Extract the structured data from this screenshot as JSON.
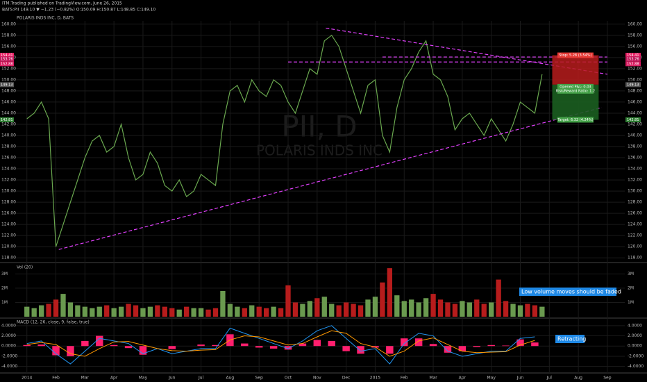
{
  "header": {
    "publisher": "ITM.Trading published on TradingView.com, June 26, 2015",
    "quote": "BATS:PII 149.10 ▼ −1.23 (−0.82%) O:150.09 H:150.87 L:148.85 C:149.10",
    "symbol": "POLARIS INDS INC, D, BATS",
    "watermark": "PII, D",
    "watermark_name": "POLARIS INDS INC"
  },
  "chart_data": [
    {
      "type": "line",
      "x": [
        0,
        0.25,
        0.5,
        0.75,
        1,
        1.25,
        1.5,
        1.75,
        2,
        2.25,
        2.5,
        2.75,
        3,
        3.25,
        3.5,
        3.75,
        4,
        4.25,
        4.5,
        4.75,
        5,
        5.25,
        5.5,
        5.75,
        6,
        6.25,
        6.5,
        6.75,
        7,
        7.25,
        7.5,
        7.75,
        8,
        8.25,
        8.5,
        8.75,
        9,
        9.25,
        9.5,
        9.75,
        10,
        10.25,
        10.5,
        10.75,
        11,
        11.25,
        11.5,
        11.75,
        12,
        12.25,
        12.5,
        12.75,
        13,
        13.25,
        13.5,
        13.75,
        14,
        14.25,
        14.5,
        14.75,
        15,
        15.25,
        15.5,
        15.75,
        16,
        16.25,
        16.5,
        16.75,
        17,
        17.25,
        17.5,
        17.75
      ],
      "series": [
        {
          "color": "#6aa84f",
          "values": [
            143,
            144,
            146,
            143,
            120,
            124,
            128,
            132,
            136,
            139,
            140,
            137,
            138,
            142,
            136,
            132,
            133,
            137,
            135,
            131,
            130,
            132,
            129,
            130,
            133,
            132,
            131,
            142,
            148,
            149,
            146,
            150,
            148,
            147,
            150,
            149,
            146,
            144,
            148,
            152,
            151,
            157,
            158,
            156,
            152,
            148,
            144,
            149,
            150,
            140,
            137,
            145,
            150,
            152,
            155,
            157,
            151,
            150,
            147,
            141,
            143,
            144,
            142,
            140,
            143,
            141,
            139,
            142,
            146,
            145,
            144,
            151
          ]
        }
      ],
      "xlim": [
        -0.4,
        20.6
      ],
      "xticks": [
        {
          "value": 0,
          "label": "2014"
        },
        {
          "value": 1,
          "label": "Feb"
        },
        {
          "value": 2,
          "label": "Mar"
        },
        {
          "value": 3,
          "label": "Apr"
        },
        {
          "value": 4,
          "label": "May"
        },
        {
          "value": 5,
          "label": "Jun"
        },
        {
          "value": 6,
          "label": "Jul"
        },
        {
          "value": 7,
          "label": "Aug"
        },
        {
          "value": 8,
          "label": "Sep"
        },
        {
          "value": 9,
          "label": "Oct"
        },
        {
          "value": 10,
          "label": "Nov"
        },
        {
          "value": 11,
          "label": "Dec"
        },
        {
          "value": 12,
          "label": "2015"
        },
        {
          "value": 13,
          "label": "Feb"
        },
        {
          "value": 14,
          "label": "Mar"
        },
        {
          "value": 15,
          "label": "Apr"
        },
        {
          "value": 16,
          "label": "May"
        },
        {
          "value": 17,
          "label": "Jun"
        },
        {
          "value": 18,
          "label": "Jul"
        },
        {
          "value": 19,
          "label": "Aug"
        },
        {
          "value": 20,
          "label": "Sep"
        }
      ],
      "ylim": [
        117.4,
        160.6
      ],
      "yticks": [
        {
          "value": 118,
          "label": "118.00"
        },
        {
          "value": 120,
          "label": "120.00"
        },
        {
          "value": 122,
          "label": "122.00"
        },
        {
          "value": 124,
          "label": "124.00"
        },
        {
          "value": 126,
          "label": "126.00"
        },
        {
          "value": 128,
          "label": "128.00"
        },
        {
          "value": 130,
          "label": "130.00"
        },
        {
          "value": 132,
          "label": "132.00"
        },
        {
          "value": 134,
          "label": "134.00"
        },
        {
          "value": 136,
          "label": "136.00"
        },
        {
          "value": 138,
          "label": "138.00"
        },
        {
          "value": 140,
          "label": "140.00"
        },
        {
          "value": 142,
          "label": "142.00"
        },
        {
          "value": 144,
          "label": "144.00"
        },
        {
          "value": 146,
          "label": "146.00"
        },
        {
          "value": 148,
          "label": "148.00"
        },
        {
          "value": 150,
          "label": "150.00"
        },
        {
          "value": 152,
          "label": "152.00"
        },
        {
          "value": 154,
          "label": "154.00"
        },
        {
          "value": 156,
          "label": "156.00"
        },
        {
          "value": 158,
          "label": "158.00"
        },
        {
          "value": 160,
          "label": "160.00"
        }
      ],
      "grid": true,
      "trendlines": [
        {
          "color": "#e040fb",
          "points": [
            [
              1.1,
              119.5
            ],
            [
              19.8,
              145
            ]
          ]
        },
        {
          "color": "#e040fb",
          "points": [
            [
              10.3,
              159.3
            ],
            [
              20,
              151
            ]
          ]
        },
        {
          "color": "#e040fb",
          "points": [
            [
              9,
              153.2
            ],
            [
              20,
              153.2
            ]
          ]
        },
        {
          "color": "#e040fb",
          "points": [
            [
              12.25,
              154.1
            ],
            [
              20,
              154.1
            ]
          ]
        }
      ],
      "position": {
        "x": [
          18.1,
          19.7
        ],
        "entry": 149.13,
        "stop": 154.41,
        "target": 142.81,
        "stop_label": "Stop: 5.28 (3.54%)",
        "pnl_label": "Opened P&L: 0.03",
        "rr_label": "Risk/Reward Ratio: 1.2",
        "target_label": "Target: 6.32 (4.24%)"
      },
      "price_tags": [
        {
          "value": 154.41,
          "color": "#e91e63"
        },
        {
          "value": 153.76,
          "color": "#c2185b"
        },
        {
          "value": 152.88,
          "color": "#d81b60"
        },
        {
          "value": 149.13,
          "color": "#555555"
        },
        {
          "value": 142.81,
          "color": "#2e7d32"
        }
      ]
    },
    {
      "type": "bar",
      "title": "Vol (20)",
      "values": [
        700000,
        600000,
        800000,
        900000,
        1200000,
        1600000,
        1000000,
        800000,
        700000,
        600000,
        700000,
        800000,
        600000,
        700000,
        900000,
        800000,
        600000,
        700000,
        800000,
        700000,
        600000,
        500000,
        700000,
        600000,
        600000,
        500000,
        600000,
        1800000,
        900000,
        700000,
        600000,
        800000,
        700000,
        600000,
        700000,
        600000,
        2200000,
        1000000,
        900000,
        1100000,
        1300000,
        1400000,
        900000,
        800000,
        1000000,
        900000,
        800000,
        1200000,
        1400000,
        2400000,
        3400000,
        1500000,
        1100000,
        1200000,
        1000000,
        1300000,
        1600000,
        1200000,
        1000000,
        900000,
        1100000,
        1000000,
        1200000,
        900000,
        1000000,
        2600000,
        1100000,
        900000,
        800000,
        900000,
        800000,
        700000
      ],
      "up_color": "#6a9a4f",
      "down_color": "#b71c1c",
      "ylim": [
        0,
        3600000
      ],
      "yticks": [
        {
          "value": 1000000,
          "label": "1M"
        },
        {
          "value": 2000000,
          "label": "2M"
        },
        {
          "value": 3000000,
          "label": "3M"
        }
      ],
      "annotation": "Low volume moves should be faded"
    },
    {
      "type": "macd",
      "title": "MACD (12, 26, close, 9, false, true)",
      "x": [
        0,
        0.5,
        1,
        1.5,
        2,
        2.5,
        3,
        3.5,
        4,
        4.5,
        5,
        5.5,
        6,
        6.5,
        7,
        7.5,
        8,
        8.5,
        9,
        9.5,
        10,
        10.5,
        11,
        11.5,
        12,
        12.5,
        13,
        13.5,
        14,
        14.5,
        15,
        15.5,
        16,
        16.5,
        17,
        17.5
      ],
      "series": [
        {
          "color": "#2196f3",
          "values": [
            0.5,
            1,
            -1.5,
            -3.5,
            -1,
            1.5,
            1,
            0.5,
            -1.5,
            -0.5,
            -1.5,
            -1,
            -0.5,
            -0.5,
            3.5,
            2.5,
            1.5,
            0.5,
            -0.5,
            1,
            3,
            4,
            1.5,
            -1,
            -0.5,
            -3.5,
            0.5,
            2.5,
            2,
            -1,
            -2,
            -1.5,
            -1,
            -1,
            1.5,
            1.8
          ]
        },
        {
          "color": "#ff9800",
          "values": [
            0.3,
            0.7,
            0.3,
            -1.5,
            -2,
            -0.5,
            0.8,
            0.9,
            0.2,
            -0.5,
            -0.9,
            -1,
            -0.8,
            -0.7,
            1.2,
            2,
            1.8,
            1,
            0.2,
            0.5,
            1.8,
            3,
            2.5,
            0.5,
            -0.2,
            -2,
            -1,
            1,
            1.6,
            0.3,
            -1,
            -1.3,
            -1.2,
            -1.1,
            0.2,
            1.1
          ]
        }
      ],
      "histogram": {
        "color": "#ff1f6e",
        "values": [
          0.2,
          0.3,
          -1.8,
          -2,
          1,
          2,
          0.2,
          -0.4,
          -1.7,
          0,
          -0.6,
          0,
          0.3,
          0.2,
          2.3,
          0.5,
          -0.3,
          -0.5,
          -0.7,
          0.5,
          1.2,
          1,
          -1,
          -1.5,
          -0.3,
          -1.5,
          1.5,
          1.5,
          0.4,
          -1.3,
          -1,
          -0.2,
          0.2,
          0.1,
          1.3,
          0.7
        ]
      },
      "ylim": [
        -5,
        5.2
      ],
      "yticks": [
        {
          "value": -4,
          "label": "-4.0000"
        },
        {
          "value": -2,
          "label": "-2.0000"
        },
        {
          "value": 0,
          "label": "0.0000"
        },
        {
          "value": 2,
          "label": "2.0000"
        },
        {
          "value": 4,
          "label": "4.0000"
        }
      ],
      "annotation": "Retracting"
    }
  ]
}
